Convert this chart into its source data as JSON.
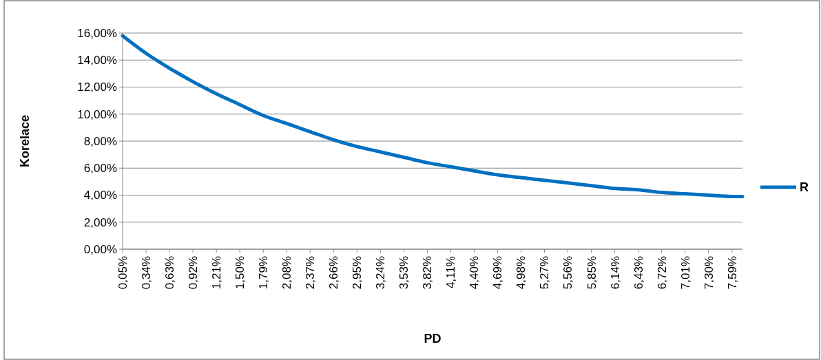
{
  "chart_data": {
    "type": "line",
    "xlabel": "PD",
    "ylabel": "Korelace",
    "x": [
      0.05,
      0.34,
      0.63,
      0.92,
      1.21,
      1.5,
      1.79,
      2.08,
      2.37,
      2.66,
      2.95,
      3.24,
      3.53,
      3.82,
      4.11,
      4.4,
      4.69,
      4.98,
      5.27,
      5.56,
      5.85,
      6.14,
      6.43,
      6.72,
      7.01,
      7.3,
      7.59,
      7.72
    ],
    "series": [
      {
        "name": "R",
        "color": "#0070c0",
        "values": [
          15.8,
          14.5,
          13.4,
          12.4,
          11.5,
          10.7,
          9.9,
          9.3,
          8.7,
          8.1,
          7.6,
          7.2,
          6.8,
          6.4,
          6.1,
          5.8,
          5.5,
          5.3,
          5.1,
          4.9,
          4.7,
          4.5,
          4.4,
          4.2,
          4.1,
          4.0,
          3.9,
          3.9
        ]
      }
    ],
    "xlim": [
      0.05,
      7.72
    ],
    "xticks": [
      {
        "value": 0.05,
        "label": "0,05%"
      },
      {
        "value": 0.34,
        "label": "0,34%"
      },
      {
        "value": 0.63,
        "label": "0,63%"
      },
      {
        "value": 0.92,
        "label": "0,92%"
      },
      {
        "value": 1.21,
        "label": "1,21%"
      },
      {
        "value": 1.5,
        "label": "1,50%"
      },
      {
        "value": 1.79,
        "label": "1,79%"
      },
      {
        "value": 2.08,
        "label": "2,08%"
      },
      {
        "value": 2.37,
        "label": "2,37%"
      },
      {
        "value": 2.66,
        "label": "2,66%"
      },
      {
        "value": 2.95,
        "label": "2,95%"
      },
      {
        "value": 3.24,
        "label": "3,24%"
      },
      {
        "value": 3.53,
        "label": "3,53%"
      },
      {
        "value": 3.82,
        "label": "3,82%"
      },
      {
        "value": 4.11,
        "label": "4,11%"
      },
      {
        "value": 4.4,
        "label": "4,40%"
      },
      {
        "value": 4.69,
        "label": "4,69%"
      },
      {
        "value": 4.98,
        "label": "4,98%"
      },
      {
        "value": 5.27,
        "label": "5,27%"
      },
      {
        "value": 5.56,
        "label": "5,56%"
      },
      {
        "value": 5.85,
        "label": "5,85%"
      },
      {
        "value": 6.14,
        "label": "6,14%"
      },
      {
        "value": 6.43,
        "label": "6,43%"
      },
      {
        "value": 6.72,
        "label": "6,72%"
      },
      {
        "value": 7.01,
        "label": "7,01%"
      },
      {
        "value": 7.3,
        "label": "7,30%"
      },
      {
        "value": 7.59,
        "label": "7,59%"
      }
    ],
    "ylim": [
      0,
      16
    ],
    "yticks": [
      {
        "value": 0,
        "label": "0,00%"
      },
      {
        "value": 2,
        "label": "2,00%"
      },
      {
        "value": 4,
        "label": "4,00%"
      },
      {
        "value": 6,
        "label": "6,00%"
      },
      {
        "value": 8,
        "label": "8,00%"
      },
      {
        "value": 10,
        "label": "10,00%"
      },
      {
        "value": 12,
        "label": "12,00%"
      },
      {
        "value": 14,
        "label": "14,00%"
      },
      {
        "value": 16,
        "label": "16,00%"
      }
    ],
    "grid": "y",
    "legend": "right",
    "marker": "none",
    "line_style": "solid"
  }
}
